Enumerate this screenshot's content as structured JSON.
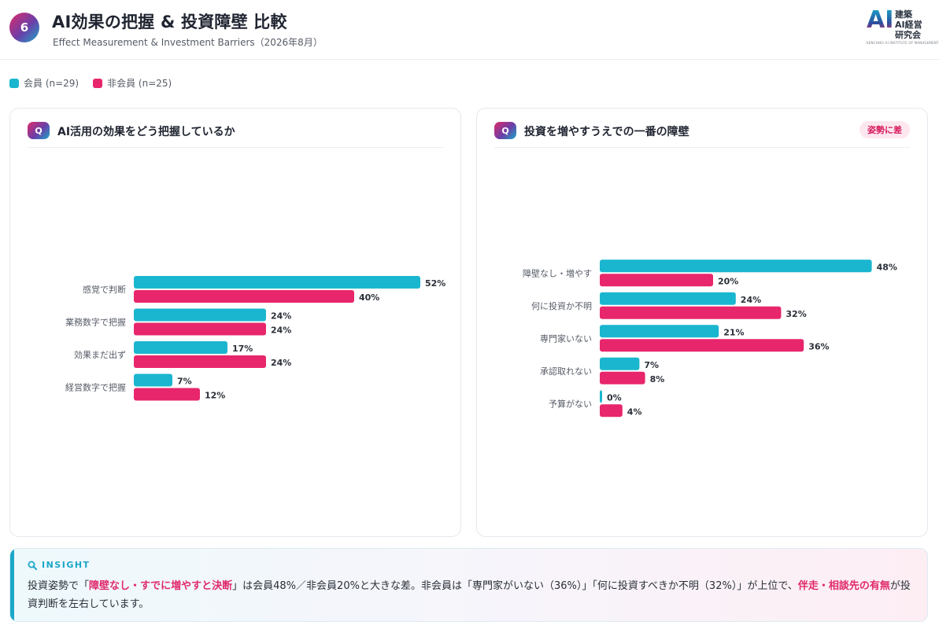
{
  "header": {
    "number": "6",
    "title": "AI効果の把握 & 投資障壁 比較",
    "subtitle": "Effect Measurement & Investment Barriers（2026年8月）",
    "logo_mark": "AI",
    "logo_line1": "建築",
    "logo_line2": "AI経営",
    "logo_line3": "研究会",
    "logo_small": "KENCHIKU AI INSTITUTE OF MANAGEMENT"
  },
  "colors": {
    "member": "#1ab6cf",
    "nonmember": "#e8266b",
    "accent": "#1aa7c8",
    "highlight": "#e02a6b"
  },
  "legend": [
    {
      "label": "会員 (n=29)",
      "color": "#1ab6cf"
    },
    {
      "label": "非会員 (n=25)",
      "color": "#e8266b"
    }
  ],
  "panels": {
    "left": {
      "q_icon": "Q",
      "question": "AI活用の効果をどう把握しているか",
      "tag": ""
    },
    "right": {
      "q_icon": "Q",
      "question": "投資を増やすうえでの一番の障壁",
      "tag": "姿勢に差"
    }
  },
  "chart_data": [
    {
      "type": "bar",
      "orientation": "horizontal",
      "title": "AI活用の効果をどう把握しているか",
      "categories": [
        "感覚で判断",
        "業務数字で把握",
        "効果まだ出ず",
        "経営数字で把握"
      ],
      "series": [
        {
          "name": "会員 (n=29)",
          "values": [
            52,
            24,
            17,
            7
          ]
        },
        {
          "name": "非会員 (n=25)",
          "values": [
            40,
            24,
            24,
            12
          ]
        }
      ],
      "value_format": "%",
      "xlim": [
        0,
        60
      ],
      "grid": false,
      "legend": "top-left"
    },
    {
      "type": "bar",
      "orientation": "horizontal",
      "title": "投資を増やすうえでの一番の障壁",
      "categories": [
        "障壁なし・増やす",
        "何に投資か不明",
        "専門家いない",
        "承認取れない",
        "予算がない"
      ],
      "series": [
        {
          "name": "会員 (n=29)",
          "values": [
            48,
            24,
            21,
            7,
            0
          ]
        },
        {
          "name": "非会員 (n=25)",
          "values": [
            20,
            32,
            36,
            8,
            4
          ]
        }
      ],
      "value_format": "%",
      "xlim": [
        0,
        60
      ],
      "grid": false,
      "legend": "top-left"
    }
  ],
  "insight": {
    "icon": "magnifier-icon",
    "label": "INSIGHT",
    "t1": "投資姿勢で「",
    "h1": "障壁なし・すでに増やすと決断",
    "t2": "」は会員48%／非会員20%と大きな差。非会員は「専門家がいない（36%）」「何に投資すべきか不明（32%）」が上位で、",
    "h2": "伴走・相談先の有無",
    "t3": "が投資判断を左右しています。"
  }
}
